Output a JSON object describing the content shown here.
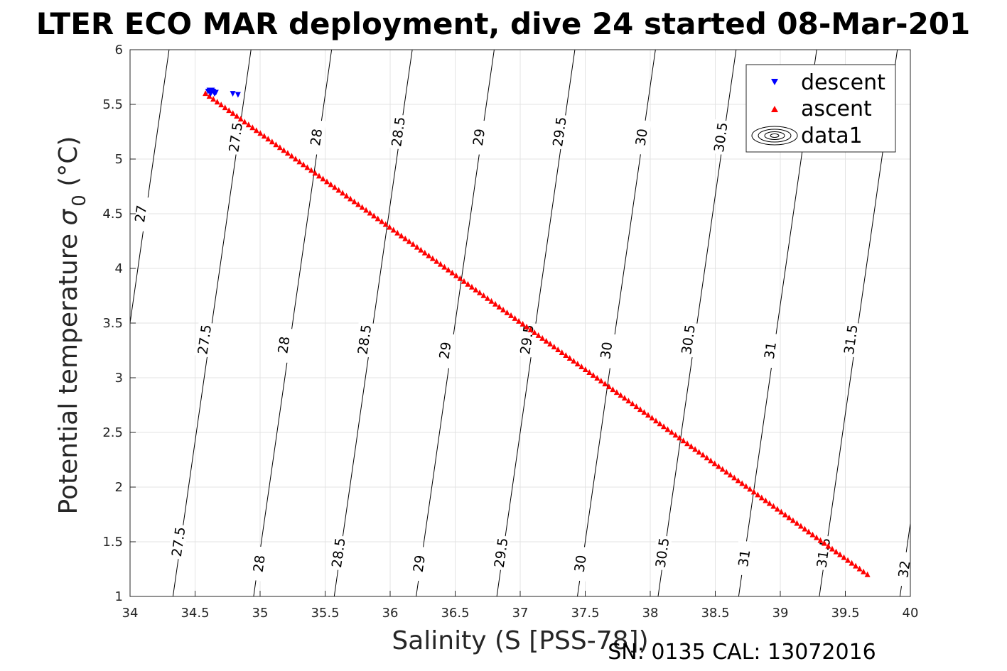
{
  "chart_data": {
    "type": "scatter",
    "title": "LTER ECO MAR deployment, dive 24 started 08-Mar-201",
    "xlabel": "Salinity (S [PSS-78])",
    "ylabel_text": "Potential temperature ",
    "ylabel_symbol": "σ",
    "ylabel_sub": "0",
    "ylabel_unit": " (°C)",
    "footer": "SN: 0135  CAL: 13072016",
    "xlim": [
      34,
      40
    ],
    "ylim": [
      1,
      6
    ],
    "grid": true,
    "legend_position": "top-right",
    "x_ticks": [
      "34",
      "34.5",
      "35",
      "35.5",
      "36",
      "36.5",
      "37",
      "37.5",
      "38",
      "38.5",
      "39",
      "39.5",
      "40"
    ],
    "y_ticks": [
      "1",
      "1.5",
      "2",
      "2.5",
      "3",
      "3.5",
      "4",
      "4.5",
      "5",
      "5.5",
      "6"
    ],
    "legend": [
      {
        "name": "descent",
        "marker": "triangle-down",
        "color": "#0000ff"
      },
      {
        "name": "ascent",
        "marker": "triangle-up",
        "color": "#ff0000"
      },
      {
        "name": "data1",
        "marker": "contour-ellipses",
        "color": "#000000"
      }
    ],
    "contours": [
      {
        "level": "27",
        "x_at_t1": 33.7,
        "x_at_t6": 34.3,
        "labels": [
          [
            34.08,
            4.5
          ]
        ]
      },
      {
        "level": "27.5",
        "x_at_t1": 34.33,
        "x_at_t6": 34.93,
        "labels": [
          [
            34.37,
            1.5
          ],
          [
            34.57,
            3.35
          ],
          [
            34.81,
            5.2
          ]
        ]
      },
      {
        "level": "28",
        "x_at_t1": 34.95,
        "x_at_t6": 35.55,
        "labels": [
          [
            34.99,
            1.3
          ],
          [
            35.18,
            3.3
          ],
          [
            35.43,
            5.2
          ]
        ]
      },
      {
        "level": "28.5",
        "x_at_t1": 35.57,
        "x_at_t6": 36.17,
        "labels": [
          [
            35.6,
            1.4
          ],
          [
            35.8,
            3.35
          ],
          [
            36.06,
            5.25
          ]
        ]
      },
      {
        "level": "29",
        "x_at_t1": 36.2,
        "x_at_t6": 36.8,
        "labels": [
          [
            36.22,
            1.3
          ],
          [
            36.42,
            3.25
          ],
          [
            36.68,
            5.2
          ]
        ]
      },
      {
        "level": "29.5",
        "x_at_t1": 36.82,
        "x_at_t6": 37.42,
        "labels": [
          [
            36.85,
            1.4
          ],
          [
            37.05,
            3.35
          ],
          [
            37.3,
            5.25
          ]
        ]
      },
      {
        "level": "30",
        "x_at_t1": 37.44,
        "x_at_t6": 38.04,
        "labels": [
          [
            37.46,
            1.3
          ],
          [
            37.66,
            3.25
          ],
          [
            37.93,
            5.2
          ]
        ]
      },
      {
        "level": "30.5",
        "x_at_t1": 38.06,
        "x_at_t6": 38.66,
        "labels": [
          [
            38.09,
            1.4
          ],
          [
            38.29,
            3.35
          ],
          [
            38.54,
            5.2
          ]
        ]
      },
      {
        "level": "31",
        "x_at_t1": 38.68,
        "x_at_t6": 39.28,
        "labels": [
          [
            38.72,
            1.35
          ],
          [
            38.92,
            3.25
          ]
        ]
      },
      {
        "level": "31.5",
        "x_at_t1": 39.3,
        "x_at_t6": 39.9,
        "labels": [
          [
            39.33,
            1.4
          ],
          [
            39.54,
            3.35
          ]
        ]
      },
      {
        "level": "32",
        "x_at_t1": 39.92,
        "x_at_t6": 40.52,
        "labels": [
          [
            39.95,
            1.25
          ]
        ]
      }
    ],
    "series": [
      {
        "name": "descent",
        "marker": "triangle-down",
        "color": "#0000ff",
        "points": [
          [
            34.6,
            5.62
          ],
          [
            34.61,
            5.63
          ],
          [
            34.62,
            5.62
          ],
          [
            34.63,
            5.63
          ],
          [
            34.64,
            5.62
          ],
          [
            34.65,
            5.6
          ],
          [
            34.62,
            5.6
          ],
          [
            34.66,
            5.61
          ],
          [
            34.79,
            5.6
          ],
          [
            34.83,
            5.59
          ]
        ]
      },
      {
        "name": "ascent",
        "marker": "triangle-up",
        "color": "#ff0000",
        "start": [
          34.58,
          5.6
        ],
        "end": [
          39.67,
          1.2
        ],
        "count": 170
      }
    ]
  }
}
